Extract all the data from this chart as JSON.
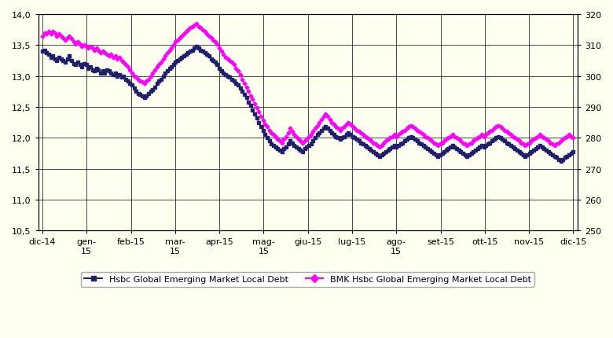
{
  "background_color": "#FFFFF0",
  "plot_bg_color": "#FFFFF0",
  "border_color": "#000000",
  "left_ylim": [
    10.5,
    14.0
  ],
  "right_ylim": [
    250,
    320
  ],
  "left_yticks": [
    10.5,
    11.0,
    11.5,
    12.0,
    12.5,
    13.0,
    13.5,
    14.0
  ],
  "right_yticks": [
    250,
    260,
    270,
    280,
    290,
    300,
    310,
    320
  ],
  "xtick_labels": [
    "dic-14",
    "gen-\n15",
    "feb-15",
    "mar-\n15",
    "apr-15",
    "mag-\n15",
    "giu-15",
    "lug-15",
    "ago-\n15",
    "set-15",
    "ott-15",
    "nov-15",
    "dic-15"
  ],
  "series1_color": "#1F1F6B",
  "series2_color": "#FF00FF",
  "series1_label": "Hsbc Global Emerging Market Local Debt",
  "series2_label": "BMK Hsbc Global Emerging Market Local Debt",
  "series1_marker": "s",
  "series2_marker": "D",
  "grid_color": "#000000",
  "series1": [
    13.4,
    13.42,
    13.38,
    13.35,
    13.3,
    13.32,
    13.28,
    13.25,
    13.3,
    13.28,
    13.25,
    13.22,
    13.28,
    13.32,
    13.25,
    13.2,
    13.18,
    13.22,
    13.18,
    13.15,
    13.2,
    13.18,
    13.12,
    13.15,
    13.1,
    13.08,
    13.12,
    13.1,
    13.05,
    13.08,
    13.05,
    13.1,
    13.08,
    13.05,
    13.02,
    13.05,
    13.0,
    13.02,
    12.98,
    13.0,
    12.95,
    12.92,
    12.88,
    12.85,
    12.8,
    12.75,
    12.72,
    12.7,
    12.68,
    12.65,
    12.68,
    12.72,
    12.75,
    12.78,
    12.82,
    12.88,
    12.92,
    12.95,
    13.0,
    13.05,
    13.08,
    13.12,
    13.15,
    13.18,
    13.22,
    13.25,
    13.28,
    13.3,
    13.32,
    13.35,
    13.38,
    13.4,
    13.42,
    13.45,
    13.48,
    13.45,
    13.42,
    13.4,
    13.38,
    13.35,
    13.32,
    13.28,
    13.25,
    13.22,
    13.18,
    13.12,
    13.08,
    13.05,
    13.02,
    13.0,
    12.98,
    12.95,
    12.92,
    12.88,
    12.85,
    12.8,
    12.75,
    12.7,
    12.65,
    12.58,
    12.52,
    12.45,
    12.38,
    12.32,
    12.25,
    12.18,
    12.12,
    12.05,
    12.0,
    11.95,
    11.9,
    11.88,
    11.85,
    11.82,
    11.8,
    11.78,
    11.82,
    11.85,
    11.9,
    11.95,
    11.92,
    11.88,
    11.85,
    11.82,
    11.8,
    11.78,
    11.82,
    11.85,
    11.88,
    11.9,
    11.95,
    12.0,
    12.05,
    12.08,
    12.12,
    12.15,
    12.18,
    12.15,
    12.12,
    12.08,
    12.05,
    12.02,
    12.0,
    11.98,
    12.0,
    12.02,
    12.05,
    12.08,
    12.05,
    12.02,
    12.0,
    11.98,
    11.95,
    11.92,
    11.9,
    11.88,
    11.85,
    11.82,
    11.8,
    11.78,
    11.75,
    11.72,
    11.7,
    11.72,
    11.75,
    11.78,
    11.8,
    11.82,
    11.85,
    11.88,
    11.85,
    11.88,
    11.9,
    11.92,
    11.95,
    11.98,
    12.0,
    12.02,
    12.0,
    11.98,
    11.95,
    11.92,
    11.9,
    11.88,
    11.85,
    11.82,
    11.8,
    11.78,
    11.75,
    11.72,
    11.7,
    11.72,
    11.75,
    11.78,
    11.8,
    11.82,
    11.85,
    11.88,
    11.85,
    11.82,
    11.8,
    11.78,
    11.75,
    11.72,
    11.7,
    11.72,
    11.75,
    11.78,
    11.8,
    11.82,
    11.85,
    11.88,
    11.85,
    11.88,
    11.9,
    11.92,
    11.95,
    11.98,
    12.0,
    12.02,
    12.0,
    11.98,
    11.95,
    11.92,
    11.9,
    11.88,
    11.85,
    11.82,
    11.8,
    11.78,
    11.75,
    11.72,
    11.7,
    11.72,
    11.75,
    11.78,
    11.8,
    11.82,
    11.85,
    11.88,
    11.85,
    11.82,
    11.8,
    11.78,
    11.75,
    11.72,
    11.7,
    11.68,
    11.65,
    11.62,
    11.65,
    11.68,
    11.7,
    11.72,
    11.75,
    11.78
  ],
  "series2": [
    13.65,
    13.7,
    13.68,
    13.72,
    13.68,
    13.72,
    13.7,
    13.65,
    13.68,
    13.65,
    13.62,
    13.58,
    13.62,
    13.65,
    13.6,
    13.55,
    13.52,
    13.55,
    13.52,
    13.48,
    13.5,
    13.48,
    13.45,
    13.48,
    13.45,
    13.42,
    13.45,
    13.42,
    13.38,
    13.4,
    13.38,
    13.35,
    13.32,
    13.35,
    13.3,
    13.32,
    13.28,
    13.3,
    13.25,
    13.22,
    13.18,
    13.15,
    13.1,
    13.05,
    13.0,
    12.98,
    12.95,
    12.92,
    12.9,
    12.88,
    12.92,
    12.95,
    13.0,
    13.05,
    13.1,
    13.15,
    13.18,
    13.22,
    13.28,
    13.32,
    13.38,
    13.42,
    13.45,
    13.5,
    13.55,
    13.58,
    13.62,
    13.65,
    13.68,
    13.72,
    13.75,
    13.78,
    13.8,
    13.82,
    13.85,
    13.8,
    13.78,
    13.75,
    13.72,
    13.68,
    13.65,
    13.62,
    13.58,
    13.55,
    13.52,
    13.45,
    13.4,
    13.35,
    13.3,
    13.28,
    13.25,
    13.22,
    13.18,
    13.12,
    13.08,
    13.02,
    12.95,
    12.88,
    12.82,
    12.75,
    12.68,
    12.62,
    12.55,
    12.48,
    12.42,
    12.35,
    12.28,
    12.22,
    12.18,
    12.12,
    12.08,
    12.05,
    12.02,
    11.98,
    11.95,
    11.92,
    11.98,
    12.02,
    12.08,
    12.15,
    12.1,
    12.05,
    12.02,
    11.98,
    11.95,
    11.92,
    11.95,
    11.98,
    12.02,
    12.05,
    12.1,
    12.15,
    12.2,
    12.25,
    12.3,
    12.35,
    12.38,
    12.35,
    12.3,
    12.25,
    12.22,
    12.18,
    12.15,
    12.12,
    12.15,
    12.18,
    12.22,
    12.25,
    12.22,
    12.18,
    12.15,
    12.12,
    12.1,
    12.08,
    12.05,
    12.02,
    12.0,
    11.98,
    11.95,
    11.92,
    11.9,
    11.88,
    11.85,
    11.88,
    11.92,
    11.95,
    11.98,
    12.0,
    12.02,
    12.05,
    12.02,
    12.05,
    12.08,
    12.1,
    12.12,
    12.15,
    12.18,
    12.2,
    12.18,
    12.15,
    12.12,
    12.1,
    12.08,
    12.05,
    12.02,
    12.0,
    11.98,
    11.95,
    11.92,
    11.9,
    11.88,
    11.9,
    11.92,
    11.95,
    11.98,
    12.0,
    12.02,
    12.05,
    12.02,
    12.0,
    11.98,
    11.95,
    11.92,
    11.9,
    11.88,
    11.9,
    11.92,
    11.95,
    11.98,
    12.0,
    12.02,
    12.05,
    12.02,
    12.05,
    12.08,
    12.1,
    12.12,
    12.15,
    12.18,
    12.2,
    12.18,
    12.15,
    12.12,
    12.1,
    12.08,
    12.05,
    12.02,
    12.0,
    11.98,
    11.95,
    11.92,
    11.9,
    11.88,
    11.9,
    11.92,
    11.95,
    11.98,
    12.0,
    12.02,
    12.05,
    12.02,
    12.0,
    11.98,
    11.95,
    11.92,
    11.9,
    11.88,
    11.9,
    11.92,
    11.95,
    11.98,
    12.0,
    12.02,
    12.05,
    12.02,
    12.0
  ]
}
